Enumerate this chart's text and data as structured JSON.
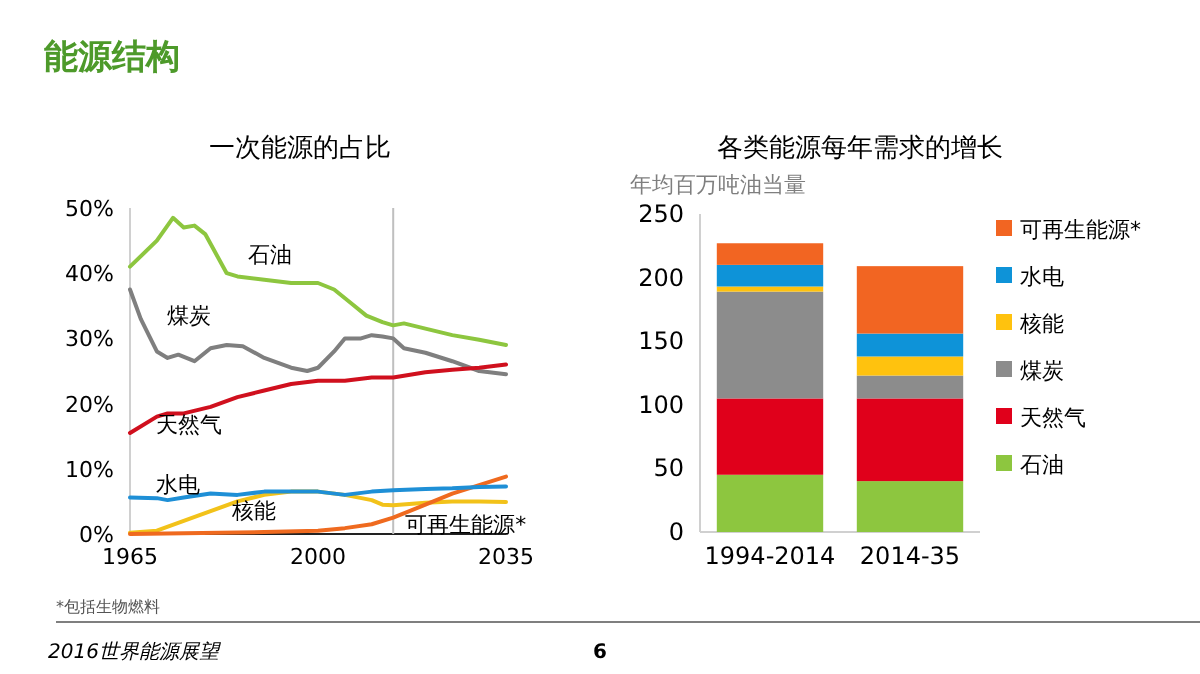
{
  "chart_data": [
    {
      "type": "line",
      "title": "一次能源的占比",
      "xlim": [
        1965,
        2035
      ],
      "xticks": [
        1965,
        2000,
        2035
      ],
      "ylim": [
        0,
        50
      ],
      "yticks": [
        {
          "value": 0,
          "label": "0%"
        },
        {
          "value": 10,
          "label": "10%"
        },
        {
          "value": 20,
          "label": "20%"
        },
        {
          "value": 30,
          "label": "30%"
        },
        {
          "value": 40,
          "label": "40%"
        },
        {
          "value": 50,
          "label": "50%"
        }
      ],
      "ref_lines": [
        {
          "axis": "x",
          "value": 2014,
          "label": null,
          "color": "#bfbfbf"
        }
      ],
      "annotations": [
        "能源结构",
        "*包括生物燃料",
        "2016世界能源展望",
        "6"
      ],
      "series": [
        {
          "name": "石油",
          "color": "#8dc63f",
          "x": [
            1965,
            1970,
            1973,
            1975,
            1977,
            1979,
            1983,
            1985,
            1990,
            1995,
            1998,
            2000,
            2003,
            2006,
            2009,
            2012,
            2014,
            2016,
            2020,
            2025,
            2030,
            2035
          ],
          "values": [
            41,
            45,
            48.5,
            47,
            47.3,
            46,
            40,
            39.5,
            39,
            38.5,
            38.5,
            38.5,
            37.5,
            35.5,
            33.5,
            32.5,
            32,
            32.3,
            31.5,
            30.5,
            29.8,
            29
          ]
        },
        {
          "name": "煤炭",
          "color": "#7f7f7f",
          "x": [
            1965,
            1967,
            1970,
            1972,
            1974,
            1977,
            1980,
            1983,
            1986,
            1990,
            1995,
            1998,
            2000,
            2003,
            2005,
            2008,
            2010,
            2012,
            2014,
            2016,
            2020,
            2025,
            2030,
            2035
          ],
          "values": [
            37.5,
            33,
            28,
            27,
            27.5,
            26.5,
            28.5,
            29,
            28.8,
            27,
            25.5,
            25,
            25.5,
            28,
            30,
            30,
            30.5,
            30.3,
            30,
            28.5,
            27.8,
            26.5,
            25,
            24.5
          ]
        },
        {
          "name": "天然气",
          "color": "#d0101e",
          "x": [
            1965,
            1970,
            1972,
            1975,
            1980,
            1985,
            1990,
            1995,
            2000,
            2005,
            2010,
            2014,
            2020,
            2025,
            2030,
            2035
          ],
          "values": [
            15.5,
            18,
            18.5,
            18.5,
            19.5,
            21,
            22,
            23,
            23.5,
            23.5,
            24,
            24,
            24.8,
            25.2,
            25.5,
            26
          ]
        },
        {
          "name": "水电",
          "color": "#1e8fd6",
          "x": [
            1965,
            1970,
            1972,
            1975,
            1980,
            1985,
            1990,
            2000,
            2005,
            2010,
            2014,
            2020,
            2025,
            2030,
            2035
          ],
          "values": [
            5.6,
            5.5,
            5.2,
            5.6,
            6.2,
            6,
            6.5,
            6.5,
            6,
            6.5,
            6.7,
            6.9,
            7,
            7.2,
            7.3
          ]
        },
        {
          "name": "核能",
          "color": "#f2c21a",
          "x": [
            1965,
            1970,
            1975,
            1980,
            1985,
            1990,
            1995,
            2000,
            2005,
            2010,
            2012,
            2014,
            2020,
            2025,
            2030,
            2035
          ],
          "values": [
            0.2,
            0.5,
            2,
            3.5,
            5,
            6,
            6.5,
            6.5,
            6,
            5.2,
            4.5,
            4.4,
            4.8,
            5,
            5,
            4.9
          ]
        },
        {
          "name": "可再生能源*",
          "color": "#ef6a1f",
          "x": [
            1965,
            1990,
            2000,
            2005,
            2010,
            2014,
            2020,
            2025,
            2030,
            2035
          ],
          "values": [
            0,
            0.3,
            0.5,
            0.9,
            1.5,
            2.5,
            4.5,
            6.2,
            7.5,
            8.8
          ]
        }
      ]
    },
    {
      "type": "bar",
      "stacked": true,
      "title": "各类能源每年需求的增长",
      "ylabel": "年均百万吨油当量",
      "categories": [
        "1994-2014",
        "2014-35"
      ],
      "ylim": [
        0,
        250
      ],
      "yticks": [
        0,
        50,
        100,
        150,
        200,
        250
      ],
      "legend": "right",
      "series": [
        {
          "name": "石油",
          "color": "#8dc63f",
          "values": [
            45,
            40
          ]
        },
        {
          "name": "天然气",
          "color": "#e0001b",
          "values": [
            60,
            65
          ]
        },
        {
          "name": "煤炭",
          "color": "#8c8c8c",
          "values": [
            84,
            18
          ]
        },
        {
          "name": "核能",
          "color": "#ffc20e",
          "values": [
            4,
            15
          ]
        },
        {
          "name": "水电",
          "color": "#0e93d8",
          "values": [
            17,
            18
          ]
        },
        {
          "name": "可再生能源*",
          "color": "#f26522",
          "values": [
            17,
            53
          ]
        }
      ]
    }
  ]
}
